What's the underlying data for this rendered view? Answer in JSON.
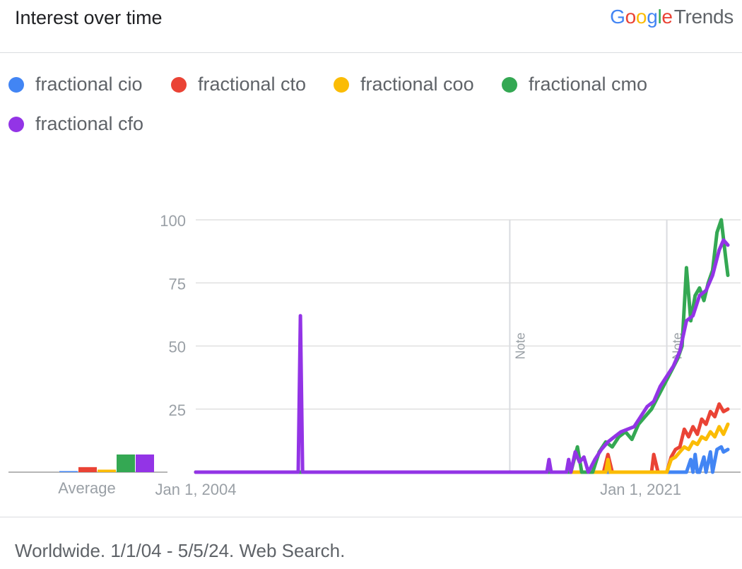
{
  "header": {
    "title": "Interest over time",
    "brand_google": "Google",
    "brand_trends": "Trends"
  },
  "footer": {
    "text": "Worldwide. 1/1/04 - 5/5/24. Web Search."
  },
  "chart_data": {
    "type": "line",
    "title": "Interest over time",
    "x_range": [
      "2004-01",
      "2024-05"
    ],
    "ylim": [
      0,
      100
    ],
    "y_ticks": [
      100,
      75,
      50,
      25
    ],
    "x_tick_labels": [
      "Jan 1, 2004",
      "Jan 1, 2021"
    ],
    "grid": true,
    "legend_position": "top",
    "notes": [
      {
        "date": "2016-01",
        "label": "Note"
      },
      {
        "date": "2022-01",
        "label": "Note"
      }
    ],
    "average_label": "Average",
    "series": [
      {
        "name": "fractional cio",
        "color": "#4285f4",
        "average": 0,
        "points": [
          [
            "2004-01",
            0
          ],
          [
            "2022-10",
            0
          ],
          [
            "2022-12",
            5
          ],
          [
            "2023-01",
            0
          ],
          [
            "2023-02",
            7
          ],
          [
            "2023-03",
            0
          ],
          [
            "2023-04",
            0
          ],
          [
            "2023-06",
            6
          ],
          [
            "2023-07",
            0
          ],
          [
            "2023-09",
            8
          ],
          [
            "2023-10",
            0
          ],
          [
            "2023-12",
            9
          ],
          [
            "2024-02",
            10
          ],
          [
            "2024-03",
            8
          ],
          [
            "2024-05",
            9
          ]
        ]
      },
      {
        "name": "fractional cto",
        "color": "#ea4335",
        "average": 2,
        "points": [
          [
            "2004-01",
            0
          ],
          [
            "2019-08",
            0
          ],
          [
            "2019-10",
            7
          ],
          [
            "2019-12",
            0
          ],
          [
            "2021-06",
            0
          ],
          [
            "2021-07",
            7
          ],
          [
            "2021-09",
            0
          ],
          [
            "2022-01",
            0
          ],
          [
            "2022-03",
            6
          ],
          [
            "2022-05",
            9
          ],
          [
            "2022-07",
            10
          ],
          [
            "2022-09",
            17
          ],
          [
            "2022-11",
            14
          ],
          [
            "2023-01",
            18
          ],
          [
            "2023-03",
            15
          ],
          [
            "2023-05",
            21
          ],
          [
            "2023-07",
            19
          ],
          [
            "2023-09",
            24
          ],
          [
            "2023-11",
            22
          ],
          [
            "2024-01",
            27
          ],
          [
            "2024-03",
            24
          ],
          [
            "2024-05",
            25
          ]
        ]
      },
      {
        "name": "fractional coo",
        "color": "#fbbc05",
        "average": 1,
        "points": [
          [
            "2004-01",
            0
          ],
          [
            "2019-09",
            0
          ],
          [
            "2019-10",
            5
          ],
          [
            "2019-11",
            0
          ],
          [
            "2022-01",
            0
          ],
          [
            "2022-03",
            5
          ],
          [
            "2022-05",
            6
          ],
          [
            "2022-07",
            8
          ],
          [
            "2022-09",
            10
          ],
          [
            "2022-11",
            9
          ],
          [
            "2023-01",
            12
          ],
          [
            "2023-03",
            11
          ],
          [
            "2023-05",
            14
          ],
          [
            "2023-07",
            13
          ],
          [
            "2023-09",
            16
          ],
          [
            "2023-11",
            14
          ],
          [
            "2024-01",
            18
          ],
          [
            "2024-03",
            15
          ],
          [
            "2024-05",
            19
          ]
        ]
      },
      {
        "name": "fractional cmo",
        "color": "#34a853",
        "average": 7,
        "points": [
          [
            "2004-01",
            0
          ],
          [
            "2018-05",
            0
          ],
          [
            "2018-08",
            10
          ],
          [
            "2018-10",
            0
          ],
          [
            "2019-03",
            0
          ],
          [
            "2019-06",
            8
          ],
          [
            "2019-09",
            12
          ],
          [
            "2019-12",
            10
          ],
          [
            "2020-03",
            14
          ],
          [
            "2020-06",
            16
          ],
          [
            "2020-09",
            13
          ],
          [
            "2020-12",
            19
          ],
          [
            "2021-03",
            22
          ],
          [
            "2021-06",
            25
          ],
          [
            "2021-09",
            30
          ],
          [
            "2021-12",
            35
          ],
          [
            "2022-03",
            40
          ],
          [
            "2022-06",
            45
          ],
          [
            "2022-08",
            50
          ],
          [
            "2022-10",
            81
          ],
          [
            "2022-12",
            60
          ],
          [
            "2023-02",
            70
          ],
          [
            "2023-04",
            73
          ],
          [
            "2023-06",
            68
          ],
          [
            "2023-08",
            75
          ],
          [
            "2023-10",
            80
          ],
          [
            "2023-12",
            95
          ],
          [
            "2024-02",
            100
          ],
          [
            "2024-04",
            85
          ],
          [
            "2024-05",
            78
          ]
        ]
      },
      {
        "name": "fractional cfo",
        "color": "#9334e6",
        "average": 7,
        "points": [
          [
            "2004-01",
            0
          ],
          [
            "2007-12",
            0
          ],
          [
            "2008-01",
            62
          ],
          [
            "2008-02",
            0
          ],
          [
            "2017-06",
            0
          ],
          [
            "2017-07",
            5
          ],
          [
            "2017-08",
            0
          ],
          [
            "2018-03",
            0
          ],
          [
            "2018-04",
            5
          ],
          [
            "2018-05",
            0
          ],
          [
            "2018-07",
            8
          ],
          [
            "2018-09",
            4
          ],
          [
            "2018-11",
            6
          ],
          [
            "2019-01",
            0
          ],
          [
            "2019-04",
            5
          ],
          [
            "2019-07",
            9
          ],
          [
            "2019-10",
            12
          ],
          [
            "2020-01",
            14
          ],
          [
            "2020-04",
            16
          ],
          [
            "2020-07",
            17
          ],
          [
            "2020-10",
            18
          ],
          [
            "2021-01",
            22
          ],
          [
            "2021-04",
            26
          ],
          [
            "2021-07",
            28
          ],
          [
            "2021-10",
            34
          ],
          [
            "2022-01",
            38
          ],
          [
            "2022-04",
            42
          ],
          [
            "2022-07",
            48
          ],
          [
            "2022-10",
            60
          ],
          [
            "2023-01",
            62
          ],
          [
            "2023-04",
            70
          ],
          [
            "2023-07",
            72
          ],
          [
            "2023-10",
            78
          ],
          [
            "2024-01",
            88
          ],
          [
            "2024-03",
            92
          ],
          [
            "2024-05",
            90
          ]
        ]
      }
    ]
  }
}
